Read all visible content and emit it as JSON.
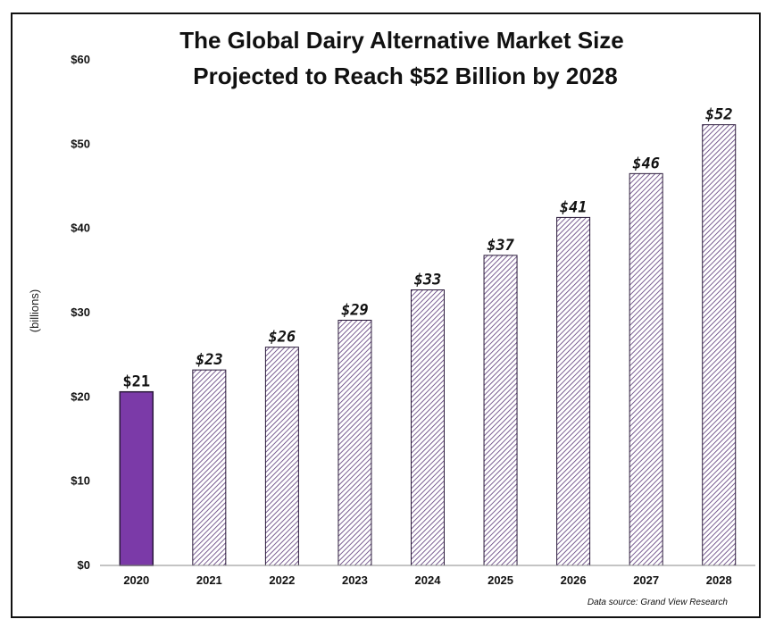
{
  "chart_data": {
    "type": "bar",
    "title_lines": [
      "The Global Dairy Alternative Market Size",
      "Projected to Reach $52 Billion by 2028"
    ],
    "ylabel": "(billions)",
    "xlabel": "",
    "categories": [
      "2020",
      "2021",
      "2022",
      "2023",
      "2024",
      "2025",
      "2026",
      "2027",
      "2028"
    ],
    "values": [
      20.6,
      23.2,
      25.9,
      29.1,
      32.7,
      36.8,
      41.3,
      46.5,
      52.3
    ],
    "data_labels": [
      "$21",
      "$23",
      "$26",
      "$29",
      "$33",
      "$37",
      "$41",
      "$46",
      "$52"
    ],
    "ylim": [
      0,
      60
    ],
    "yticks": [
      0,
      10,
      20,
      30,
      40,
      50,
      60
    ],
    "ytick_labels": [
      "$0",
      "$10",
      "$20",
      "$30",
      "$40",
      "$50",
      "$60"
    ],
    "grid": false,
    "legend": "none",
    "bar_styles": [
      "solid",
      "hatched",
      "hatched",
      "hatched",
      "hatched",
      "hatched",
      "hatched",
      "hatched",
      "hatched"
    ],
    "colors": {
      "solid_fill": "#7b3aa8",
      "hatch_stroke": "#5a3878",
      "bar_outline": "#2a1a3a"
    },
    "source_note": "Data source:  Grand View Research"
  }
}
